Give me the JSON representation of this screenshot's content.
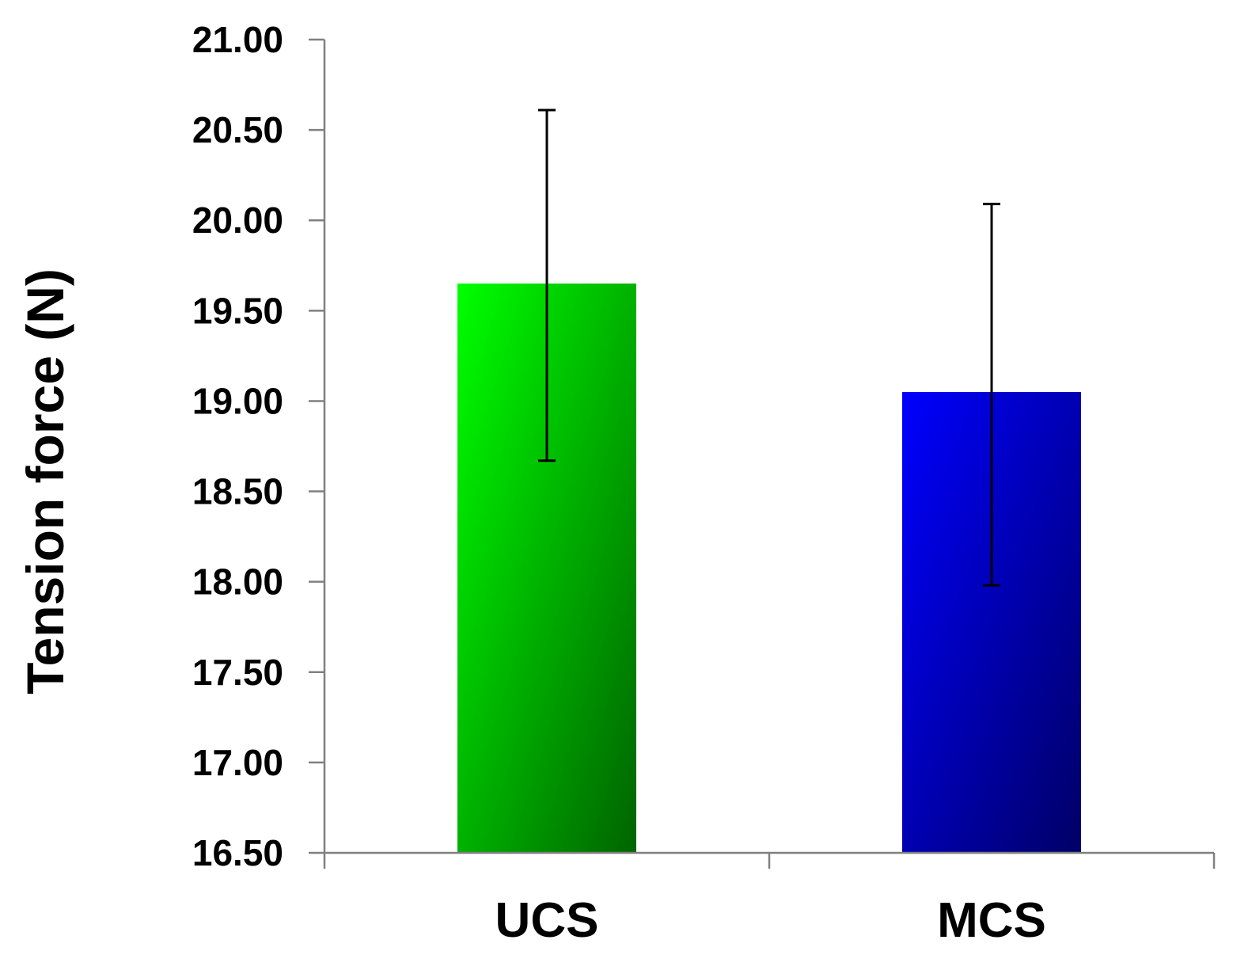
{
  "chart_data": {
    "type": "bar",
    "ylabel": "Tension force (N)",
    "xlabel": "",
    "ylim": [
      16.5,
      21.0
    ],
    "y_ticks": [
      "16.50",
      "17.00",
      "17.50",
      "18.00",
      "18.50",
      "19.00",
      "19.50",
      "20.00",
      "20.50",
      "21.00"
    ],
    "categories": [
      "UCS",
      "MCS"
    ],
    "values": [
      19.65,
      19.05
    ],
    "error_bars": [
      {
        "lower": 18.67,
        "upper": 20.61
      },
      {
        "lower": 17.98,
        "upper": 20.09
      }
    ],
    "bar_colors": [
      {
        "light": "#00ff00",
        "dark": "#006400"
      },
      {
        "light": "#0000ff",
        "dark": "#000066"
      }
    ],
    "grid": false,
    "legend": "none"
  }
}
